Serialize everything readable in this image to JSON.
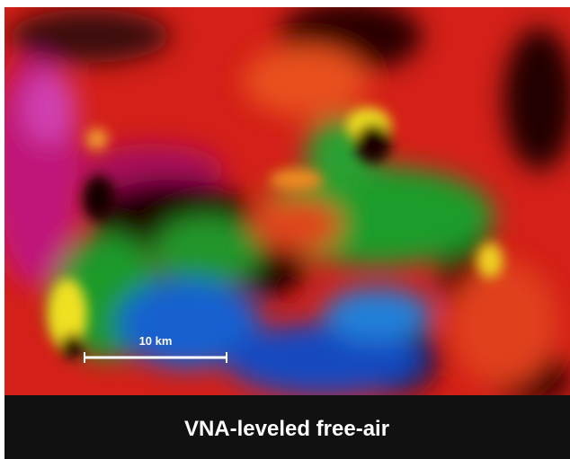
{
  "map": {
    "scale_label": "10 km",
    "caption": "VNA-leveled free-air"
  }
}
